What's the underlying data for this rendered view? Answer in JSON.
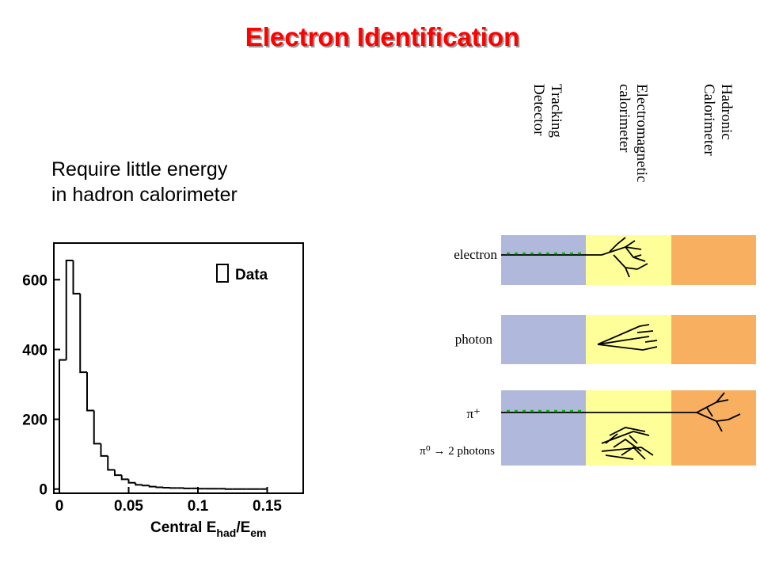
{
  "title": "Electron Identification",
  "text": [
    "Require little energy",
    "in hadron calorimeter"
  ],
  "chart_data": {
    "type": "histogram",
    "bins": [
      0,
      0.005,
      0.01,
      0.015,
      0.02,
      0.025,
      0.03,
      0.035,
      0.04,
      0.045,
      0.05,
      0.055,
      0.06,
      0.065,
      0.07,
      0.075,
      0.08,
      0.085,
      0.09,
      0.095,
      0.1,
      0.105,
      0.11,
      0.115,
      0.12,
      0.125,
      0.13,
      0.135,
      0.14,
      0.145,
      0.15
    ],
    "values": [
      370,
      655,
      560,
      335,
      225,
      130,
      95,
      55,
      40,
      28,
      18,
      12,
      10,
      7,
      5,
      4,
      3,
      3,
      2,
      2,
      1,
      1,
      1,
      1,
      0,
      0,
      0,
      0,
      0,
      0
    ],
    "legend": "Data",
    "xlabel": [
      "Central E",
      "had",
      "/E",
      "em"
    ],
    "xlim": [
      -0.004,
      0.176
    ],
    "ylim": [
      -12,
      705
    ],
    "xticks": [
      0,
      0.05,
      0.1,
      0.15
    ],
    "yticks": [
      0,
      200,
      400,
      600
    ],
    "color": "#000000"
  },
  "diagram": {
    "columns": [
      [
        "Tracking",
        "Detector"
      ],
      [
        "Electromagnetic",
        "calorimeter"
      ],
      [
        "Hadronic",
        "Calorimeter"
      ]
    ],
    "rows": [
      "electron",
      "photon",
      "π⁺",
      "π⁰ → 2 photons"
    ]
  }
}
